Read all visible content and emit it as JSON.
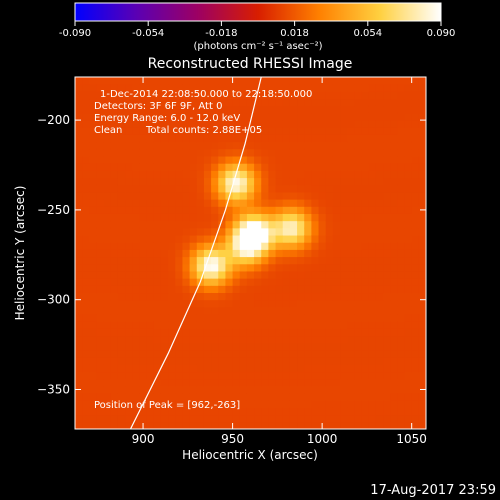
{
  "chart_data": {
    "type": "heatmap",
    "title": "Reconstructed RHESSI Image",
    "xlabel": "Heliocentric X (arcsec)",
    "ylabel": "Heliocentric Y (arcsec)",
    "xlim": [
      862,
      1058
    ],
    "ylim": [
      -372,
      -176
    ],
    "xticks": [
      900,
      950,
      1000,
      1050
    ],
    "yticks": [
      -200,
      -250,
      -300,
      -350
    ],
    "colorbar": {
      "min": -0.09,
      "max": 0.09,
      "ticks": [
        "-0.090",
        "-0.054",
        "-0.018",
        "0.018",
        "0.054",
        "0.090"
      ],
      "unit_label": "(photons cm⁻² s⁻¹ asec⁻²)",
      "colormap": [
        "#0000ff",
        "#5a00b4",
        "#9c0064",
        "#d81e00",
        "#ff8000",
        "#ffd040",
        "#ffffff"
      ]
    },
    "sources": [
      {
        "x": 962,
        "y": -263,
        "peak": 0.09
      },
      {
        "x": 983,
        "y": -260,
        "peak": 0.068
      },
      {
        "x": 952,
        "y": -235,
        "peak": 0.075
      },
      {
        "x": 938,
        "y": -281,
        "peak": 0.078
      },
      {
        "x": 957,
        "y": -271,
        "peak": 0.05
      }
    ],
    "background_level": 0.03,
    "limb": [
      [
        893,
        -372
      ],
      [
        914,
        -330
      ],
      [
        932,
        -290
      ],
      [
        946,
        -250
      ],
      [
        957,
        -213
      ],
      [
        966,
        -176
      ]
    ],
    "annotations": {
      "time_range": "1-Dec-2014 22:08:50.000 to 22:18:50.000",
      "detectors": "Detectors: 3F 6F 9F, Att 0",
      "energy_range": "Energy Range: 6.0 - 12.0 keV",
      "method": "Clean",
      "total_counts": "Total counts: 2.88E+05",
      "peak_position": "Position of Peak = [962,-263]"
    }
  },
  "footer_timestamp": "17-Aug-2017 23:59"
}
